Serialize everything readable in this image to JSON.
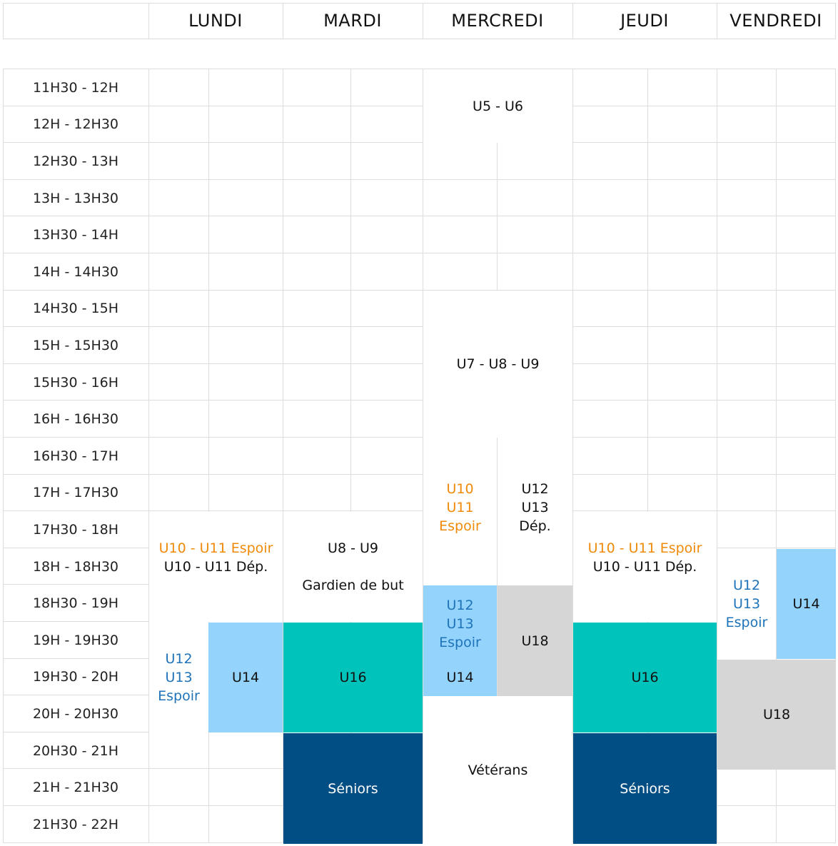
{
  "days": [
    "LUNDI",
    "MARDI",
    "MERCREDI",
    "JEUDI",
    "VENDREDI"
  ],
  "times": [
    "11H30 - 12H",
    "12H - 12H30",
    "12H30 - 13H",
    "13H - 13H30",
    "13H30 - 14H",
    "14H - 14H30",
    "14H30 - 15H",
    "15H - 15H30",
    "15H30 - 16H",
    "16H - 16H30",
    "16H30 - 17H",
    "17H - 17H30",
    "17H30 - 18H",
    "18H - 18H30",
    "18H30 - 19H",
    "19H - 19H30",
    "19H30 - 20H",
    "20H - 20H30",
    "20H30 - 21H",
    "21H - 21H30",
    "21H30 - 22H"
  ],
  "colors": {
    "light_blue": "#94d3fb",
    "teal": "#00c4bb",
    "navy": "#014e84",
    "grey": "#d7d6d7",
    "orange": "#ef8a0a",
    "blue_text": "#1e73b9"
  },
  "sessions": {
    "mer_u5_u6": "U5 - U6",
    "mer_u7_u8_u9": "U7 - U8 - U9",
    "lun_u10_u11_espoir": "U10 - U11 Espoir",
    "lun_u10_u11_dep": "U10 - U11 Dép.",
    "lun_u12": "U12",
    "lun_u13": "U13",
    "lun_espoir": "Espoir",
    "lun_u14": "U14",
    "mar_u8_u9": "U8 - U9",
    "mar_gardien": "Gardien de but",
    "mar_u16": "U16",
    "mar_seniors": "Séniors",
    "mer_u10": "U10",
    "mer_u11": "U11",
    "mer_espoir_a": "Espoir",
    "mer_u12_dep": "U12",
    "mer_u13_dep": "U13",
    "mer_dep": "Dép.",
    "mer_u12": "U12",
    "mer_u13": "U13",
    "mer_espoir_b": "Espoir",
    "mer_u14": "U14",
    "mer_u18": "U18",
    "mer_veterans": "Vétérans",
    "jeu_u10_u11_espoir": "U10 - U11 Espoir",
    "jeu_u10_u11_dep": "U10 - U11 Dép.",
    "jeu_u16": "U16",
    "jeu_seniors": "Séniors",
    "ven_u12": "U12",
    "ven_u13": "U13",
    "ven_espoir": "Espoir",
    "ven_u14": "U14",
    "ven_u18": "U18"
  }
}
